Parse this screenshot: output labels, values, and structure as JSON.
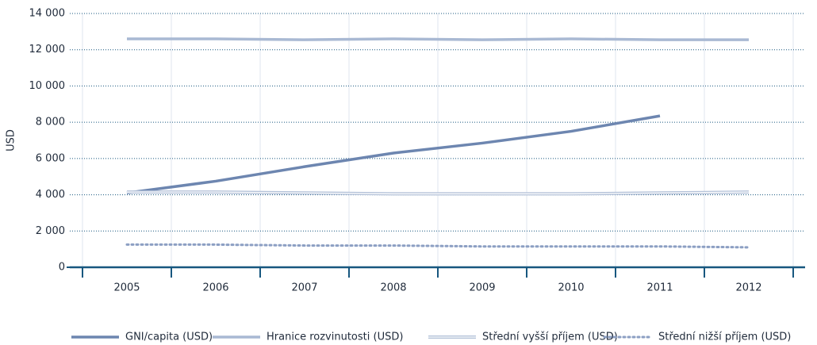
{
  "chart_data": {
    "type": "line",
    "y_label": "USD",
    "categories": [
      "2005",
      "2006",
      "2007",
      "2008",
      "2009",
      "2010",
      "2011",
      "2012"
    ],
    "series": [
      {
        "name": "GNI/capita (USD)",
        "color": "#6d86b0",
        "style": "solid",
        "values": [
          4100,
          4750,
          5550,
          6300,
          6850,
          7500,
          8350,
          null
        ]
      },
      {
        "name": "Hranice rozvinutosti (USD)",
        "color": "#a9b9d3",
        "style": "solid",
        "values": [
          12600,
          12600,
          12550,
          12600,
          12550,
          12600,
          12550,
          12550
        ]
      },
      {
        "name": "Střední vyšší příjem (USD)",
        "color": "#b3c1d8",
        "style": "double",
        "values": [
          4150,
          4150,
          4100,
          4050,
          4050,
          4050,
          4100,
          4150
        ]
      },
      {
        "name": "Střední nižší příjem (USD)",
        "color": "#8c9fc3",
        "style": "dotted",
        "values": [
          1250,
          1250,
          1200,
          1200,
          1150,
          1150,
          1150,
          1100
        ]
      }
    ],
    "ylim": [
      0,
      14000
    ],
    "yticks": [
      0,
      {
        "value": 2000,
        "label": "2 000"
      },
      {
        "value": 4000,
        "label": "4 000"
      },
      {
        "value": 6000,
        "label": "6 000"
      },
      {
        "value": 8000,
        "label": "8 000"
      },
      {
        "value": 10000,
        "label": "10 000"
      },
      {
        "value": 12000,
        "label": "12 000"
      },
      {
        "value": 14000,
        "label": "14 000"
      }
    ],
    "grid": true,
    "legend": "bottom"
  }
}
